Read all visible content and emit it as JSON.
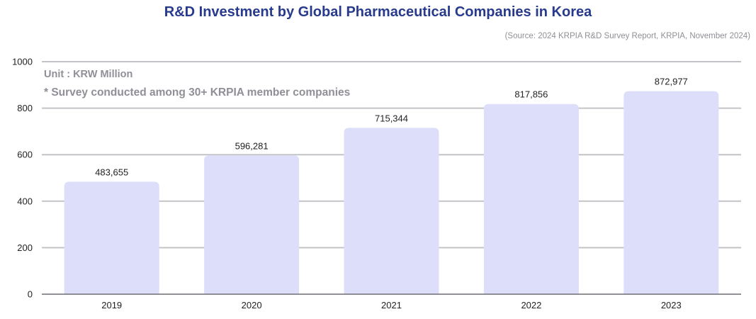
{
  "title": "R&D Investment by Global Pharmaceutical Companies in Korea",
  "source": "(Source: 2024 KRPIA R&D Survey Report, KRPIA, November 2024)",
  "notes": {
    "unit": "Unit : KRW Million",
    "survey": "* Survey conducted among 30+ KRPIA member companies"
  },
  "colors": {
    "title": "#283a8c",
    "bar": "#dcdefa",
    "grid": "#c4c4c8",
    "note": "#8f8f97"
  },
  "chart_data": {
    "type": "bar",
    "title": "R&D Investment by Global Pharmaceutical Companies in Korea",
    "categories": [
      "2019",
      "2020",
      "2021",
      "2022",
      "2023"
    ],
    "values": [
      483655,
      596281,
      715344,
      817856,
      872977
    ],
    "data_labels": [
      "483,655",
      "596,281",
      "715,344",
      "817,856",
      "872,977"
    ],
    "y_ticks": [
      "0",
      "200",
      "400",
      "600",
      "800",
      "1000"
    ],
    "ylim_label_units": [
      0,
      1000
    ],
    "ylabel": "",
    "xlabel": "",
    "grid": true,
    "legend": "none"
  }
}
